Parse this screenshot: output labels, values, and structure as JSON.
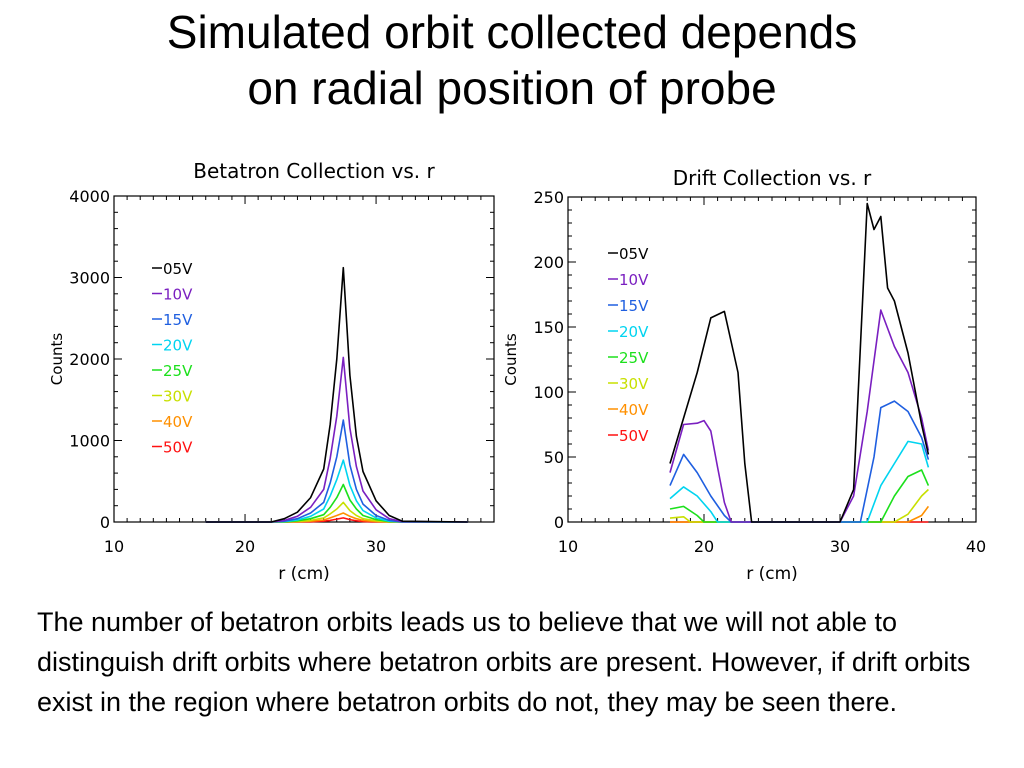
{
  "slide": {
    "title_line1": "Simulated orbit collected depends",
    "title_line2": "on radial position of probe",
    "body": "The number of betatron orbits leads us to believe that we will not able to distinguish drift orbits where betatron orbits are present. However, if drift orbits exist in the region where betatron orbits do not, they may be seen there."
  },
  "colors": {
    "-05V": "#000000",
    "-10V": "#7a1fc0",
    "-15V": "#1f5fe0",
    "-20V": "#00d4f0",
    "-25V": "#1ce01c",
    "-30V": "#c8e000",
    "-40V": "#ff9000",
    "-50V": "#ff1010"
  },
  "chart_data": [
    {
      "type": "line",
      "title": "Betatron Collection vs. r",
      "xlabel": "r (cm)",
      "ylabel": "Counts",
      "xlim": [
        10,
        39
      ],
      "ylim": [
        0,
        4000
      ],
      "xticks": [
        10,
        20,
        30
      ],
      "yticks": [
        0,
        1000,
        2000,
        3000,
        4000
      ],
      "legend_position": "upper-left",
      "series": [
        {
          "name": "-05V",
          "x": [
            17,
            22,
            23,
            24,
            25,
            26,
            26.5,
            27,
            27.5,
            28,
            28.5,
            29,
            30,
            31,
            32,
            37
          ],
          "y": [
            0,
            0,
            40,
            120,
            300,
            650,
            1200,
            2000,
            3120,
            1800,
            1050,
            620,
            260,
            80,
            10,
            0
          ]
        },
        {
          "name": "-10V",
          "x": [
            17,
            22,
            23,
            24,
            25,
            26,
            26.5,
            27,
            27.5,
            28,
            28.5,
            29,
            30,
            31,
            32,
            37
          ],
          "y": [
            0,
            0,
            20,
            70,
            180,
            400,
            780,
            1300,
            2020,
            1150,
            680,
            380,
            150,
            40,
            5,
            0
          ]
        },
        {
          "name": "-15V",
          "x": [
            17,
            22,
            23,
            24,
            25,
            26,
            26.5,
            27,
            27.5,
            28,
            28.5,
            29,
            30,
            31,
            32,
            37
          ],
          "y": [
            0,
            0,
            10,
            40,
            110,
            240,
            480,
            800,
            1250,
            700,
            400,
            220,
            80,
            20,
            0,
            0
          ]
        },
        {
          "name": "-20V",
          "x": [
            17,
            22,
            23,
            24,
            25,
            26,
            26.5,
            27,
            27.5,
            28,
            28.5,
            29,
            30,
            31,
            32,
            37
          ],
          "y": [
            0,
            0,
            5,
            25,
            70,
            160,
            320,
            520,
            760,
            450,
            260,
            140,
            50,
            10,
            0,
            0
          ]
        },
        {
          "name": "-25V",
          "x": [
            17,
            22,
            23,
            24,
            25,
            26,
            26.5,
            27,
            27.5,
            28,
            28.5,
            29,
            30,
            31,
            32,
            37
          ],
          "y": [
            0,
            0,
            0,
            15,
            40,
            90,
            180,
            300,
            460,
            270,
            160,
            80,
            30,
            5,
            0,
            0
          ]
        },
        {
          "name": "-30V",
          "x": [
            17,
            22,
            23,
            24,
            25,
            26,
            26.5,
            27,
            27.5,
            28,
            28.5,
            29,
            30,
            31,
            32,
            37
          ],
          "y": [
            0,
            0,
            0,
            8,
            20,
            50,
            100,
            160,
            240,
            140,
            80,
            40,
            15,
            0,
            0,
            0
          ]
        },
        {
          "name": "-40V",
          "x": [
            17,
            22,
            23,
            24,
            25,
            26,
            26.5,
            27,
            27.5,
            28,
            28.5,
            29,
            30,
            31,
            32,
            37
          ],
          "y": [
            0,
            0,
            0,
            3,
            10,
            25,
            50,
            80,
            110,
            70,
            40,
            20,
            5,
            0,
            0,
            0
          ]
        },
        {
          "name": "-50V",
          "x": [
            17,
            22,
            24,
            25,
            26,
            26.5,
            27,
            27.5,
            28,
            28.5,
            29,
            30,
            37
          ],
          "y": [
            0,
            0,
            0,
            3,
            10,
            20,
            35,
            50,
            30,
            15,
            5,
            0,
            0
          ]
        }
      ]
    },
    {
      "type": "line",
      "title": "Drift Collection vs. r",
      "xlabel": "r (cm)",
      "ylabel": "Counts",
      "xlim": [
        10,
        40
      ],
      "ylim": [
        0,
        250
      ],
      "xticks": [
        10,
        20,
        30,
        40
      ],
      "yticks": [
        0,
        50,
        100,
        150,
        200,
        250
      ],
      "legend_position": "upper-left",
      "series": [
        {
          "name": "-05V",
          "x": [
            17.5,
            18.5,
            19.5,
            20.5,
            21.5,
            22.5,
            23,
            23.5,
            30,
            31,
            32,
            32.5,
            33,
            33.5,
            34,
            35,
            36,
            36.5
          ],
          "y": [
            45,
            80,
            115,
            157,
            162,
            115,
            45,
            0,
            0,
            25,
            245,
            225,
            235,
            180,
            170,
            130,
            75,
            52
          ]
        },
        {
          "name": "-10V",
          "x": [
            17.5,
            18.5,
            19.5,
            20,
            20.5,
            21,
            21.5,
            22,
            23,
            30,
            31,
            32,
            33,
            34,
            35,
            36,
            36.5
          ],
          "y": [
            38,
            75,
            76,
            78,
            70,
            42,
            15,
            0,
            0,
            0,
            20,
            85,
            163,
            135,
            115,
            80,
            55
          ]
        },
        {
          "name": "-15V",
          "x": [
            17.5,
            18.5,
            19.5,
            20.5,
            21.5,
            22,
            30,
            31.5,
            32.5,
            33,
            34,
            35,
            36,
            36.5
          ],
          "y": [
            28,
            52,
            38,
            20,
            5,
            0,
            0,
            0,
            50,
            88,
            93,
            85,
            65,
            48
          ]
        },
        {
          "name": "-20V",
          "x": [
            17.5,
            18.5,
            19.5,
            20.5,
            21,
            30,
            32,
            33,
            34,
            35,
            36,
            36.5
          ],
          "y": [
            18,
            27,
            20,
            8,
            0,
            0,
            0,
            28,
            45,
            62,
            60,
            42
          ]
        },
        {
          "name": "-25V",
          "x": [
            17.5,
            18.5,
            19.5,
            20,
            30,
            33,
            34,
            35,
            36,
            36.5
          ],
          "y": [
            10,
            12,
            5,
            0,
            0,
            0,
            20,
            35,
            40,
            28
          ]
        },
        {
          "name": "-30V",
          "x": [
            17.5,
            18.5,
            19,
            30,
            34,
            35,
            36,
            36.5
          ],
          "y": [
            3,
            4,
            0,
            0,
            0,
            6,
            20,
            25
          ]
        },
        {
          "name": "-40V",
          "x": [
            17.5,
            18.5,
            30,
            35,
            36,
            36.5
          ],
          "y": [
            0,
            0,
            0,
            0,
            5,
            12
          ]
        },
        {
          "name": "-50V",
          "x": [
            17.5,
            30,
            36.5
          ],
          "y": [
            0,
            0,
            0
          ]
        }
      ]
    }
  ]
}
